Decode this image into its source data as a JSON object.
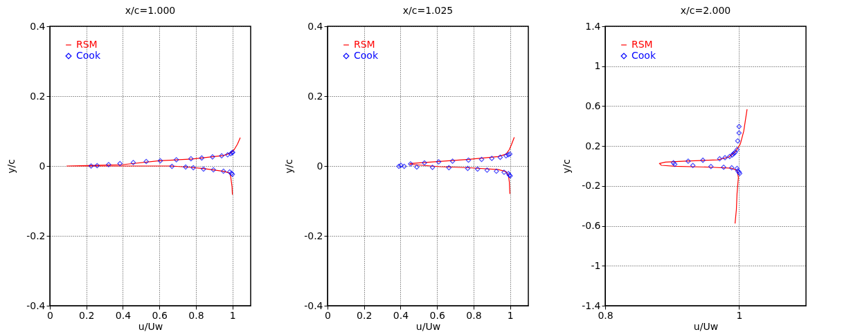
{
  "chart_data": [
    {
      "type": "line",
      "title": "x/c=1.000",
      "xlabel": "u/Uw",
      "ylabel": "y/c",
      "xlim": [
        0,
        1.1
      ],
      "xticks": [
        0,
        0.2,
        0.4,
        0.6,
        0.8,
        1
      ],
      "ylim": [
        -0.4,
        0.4
      ],
      "yticks": [
        -0.4,
        -0.2,
        0,
        0.2,
        0.4
      ],
      "grid": true,
      "legend": "top left",
      "line_style": "solid",
      "series": [
        {
          "name": "RSM",
          "color": "#ff0000",
          "x": [
            1.043,
            1.028,
            1.01,
            0.99,
            0.95,
            0.78,
            0.6,
            0.4,
            0.093,
            0.66,
            0.75,
            0.84,
            0.95,
            0.985,
            0.991,
            0.998,
            1.0
          ],
          "values": [
            0.081,
            0.063,
            0.047,
            0.037,
            0.03,
            0.02,
            0.015,
            0.004,
            0,
            0,
            -0.003,
            -0.007,
            -0.015,
            -0.02,
            -0.032,
            -0.059,
            -0.082
          ]
        },
        {
          "name": "Cook",
          "type": "scatter",
          "marker": "diamond",
          "color": "#0000ff",
          "x": [
            0.226,
            0.259,
            0.322,
            0.384,
            0.457,
            0.528,
            0.605,
            0.693,
            0.773,
            0.832,
            0.891,
            0.941,
            0.974,
            0.991,
            0.998,
            1.002,
            0.669,
            0.744,
            0.786,
            0.842,
            0.896,
            0.951,
            0.985,
            0.995,
            1.0
          ],
          "values": [
            0,
            0.001,
            0.004,
            0.007,
            0.01,
            0.013,
            0.015,
            0.018,
            0.021,
            0.023,
            0.026,
            0.029,
            0.032,
            0.035,
            0.038,
            0.039,
            -0.001,
            -0.003,
            -0.005,
            -0.009,
            -0.011,
            -0.015,
            -0.017,
            -0.021,
            -0.024
          ]
        }
      ]
    },
    {
      "type": "line",
      "title": "x/c=1.025",
      "xlabel": "u/Uw",
      "ylabel": "y/c",
      "xlim": [
        0,
        1.1
      ],
      "xticks": [
        0,
        0.2,
        0.4,
        0.6,
        0.8,
        1
      ],
      "ylim": [
        -0.4,
        0.4
      ],
      "yticks": [
        -0.4,
        -0.2,
        0,
        0.2,
        0.4
      ],
      "grid": true,
      "legend": "top left",
      "line_style": "solid",
      "series": [
        {
          "name": "RSM",
          "color": "#ff0000",
          "x": [
            1.023,
            1.009,
            0.996,
            0.978,
            0.935,
            0.775,
            0.615,
            0.455,
            0.452,
            0.615,
            0.775,
            0.935,
            0.978,
            0.991,
            0.996,
            0.999
          ],
          "values": [
            0.082,
            0.063,
            0.047,
            0.034,
            0.027,
            0.019,
            0.013,
            0.007,
            0.005,
            -0.002,
            -0.005,
            -0.01,
            -0.016,
            -0.026,
            -0.046,
            -0.08
          ]
        },
        {
          "name": "Cook",
          "type": "scatter",
          "marker": "diamond",
          "color": "#0000ff",
          "x": [
            0.391,
            0.402,
            0.42,
            0.455,
            0.531,
            0.609,
            0.685,
            0.772,
            0.844,
            0.9,
            0.946,
            0.978,
            0.99,
            0.999,
            0.489,
            0.575,
            0.665,
            0.768,
            0.822,
            0.874,
            0.925,
            0.967,
            0.991,
            0.996,
            1.001
          ],
          "values": [
            -0.001,
            0.002,
            -0.001,
            0.006,
            0.009,
            0.012,
            0.014,
            0.017,
            0.019,
            0.022,
            0.025,
            0.029,
            0.032,
            0.034,
            -0.003,
            -0.004,
            -0.005,
            -0.007,
            -0.009,
            -0.012,
            -0.015,
            -0.018,
            -0.022,
            -0.026,
            -0.028
          ]
        }
      ]
    },
    {
      "type": "line",
      "title": "x/c=2.000",
      "xlabel": "u/Uw",
      "ylabel": "y/c",
      "xlim": [
        0.8,
        1.1
      ],
      "xticks": [
        0.8,
        1
      ],
      "ylim": [
        -1.4,
        1.4
      ],
      "yticks": [
        -1.4,
        -1,
        -0.6,
        -0.2,
        0.2,
        0.6,
        1,
        1.4
      ],
      "grid": true,
      "legend": "top left",
      "line_style": "solid",
      "series": [
        {
          "name": "RSM",
          "color": "#ff0000",
          "x": [
            1.012,
            1.007,
            1.002,
            0.995,
            0.985,
            0.968,
            0.921,
            0.89,
            0.881,
            0.884,
            0.904,
            0.958,
            0.988,
            0.997,
            0.999,
            0.997,
            0.996,
            0.994
          ],
          "values": [
            0.569,
            0.349,
            0.222,
            0.146,
            0.09,
            0.062,
            0.049,
            0.039,
            0.025,
            0.007,
            -0.002,
            -0.012,
            -0.021,
            -0.044,
            -0.113,
            -0.275,
            -0.437,
            -0.576
          ]
        },
        {
          "name": "Cook",
          "type": "scatter",
          "marker": "diamond",
          "color": "#0000ff",
          "x": [
            0.902,
            0.904,
            0.924,
            0.931,
            0.946,
            0.958,
            0.971,
            0.977,
            0.979,
            0.986,
            0.989,
            0.99,
            0.992,
            0.994,
            0.997,
            0.998,
            1.0,
            1.0,
            0.997,
            0.998,
            1.0,
            1.001
          ],
          "values": [
            0.032,
            0.018,
            0.049,
            0.005,
            0.058,
            -0.005,
            0.072,
            -0.012,
            0.083,
            0.095,
            -0.018,
            0.111,
            0.125,
            0.136,
            0.164,
            0.252,
            0.331,
            0.395,
            -0.025,
            -0.049,
            -0.06,
            -0.074
          ]
        }
      ]
    }
  ]
}
